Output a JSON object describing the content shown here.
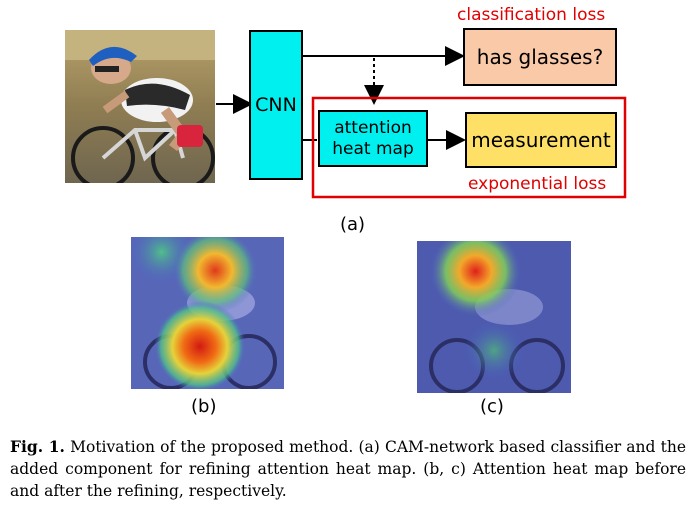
{
  "diagram": {
    "cnn_label": "CNN",
    "classifier_label": "has glasses?",
    "classification_loss": "classification loss",
    "attention_label_line1": "attention",
    "attention_label_line2": "heat map",
    "measurement_label": "measurement",
    "exponential_loss": "exponential loss",
    "panel_a": "(a)",
    "panel_b": "(b)",
    "panel_c": "(c)",
    "colors": {
      "cnn": "#00f0f0",
      "classifier": "#f9c9a8",
      "measurement": "#ffe066",
      "attention": "#00f0f0",
      "loss_red": "#e00000"
    }
  },
  "caption": {
    "label": "Fig. 1.",
    "text": "Motivation of the proposed method. (a) CAM-network based classifier and the added component for refining attention heat map. (b, c) Attention heat map before and after the refining, respectively."
  }
}
